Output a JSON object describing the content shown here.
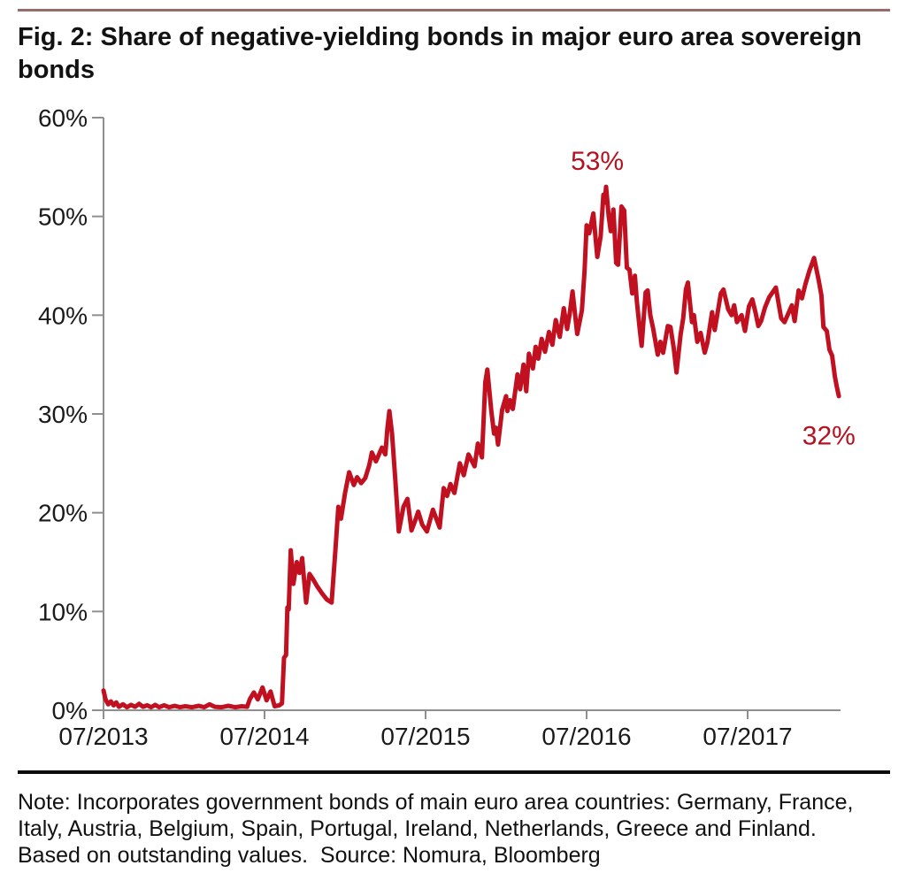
{
  "header": {
    "title": "Fig. 2: Share of negative-yielding bonds in major euro area sovereign bonds"
  },
  "footer": {
    "note_lines": [
      "Note: Incorporates government bonds of main euro area countries: Germany, France,",
      "Italy, Austria, Belgium, Spain, Portugal, Ireland, Netherlands, Greece and Finland.",
      "Based on outstanding values.  Source: Nomura, Bloomberg"
    ]
  },
  "colors": {
    "line_red": "#c11020",
    "annotation_red": "#b5121f",
    "axis_gray": "#8f8f8f",
    "tick_text": "#1a1a1a",
    "top_rule": "#996a6a",
    "bottom_rule": "#0c0c0c"
  },
  "chart_data": {
    "type": "line",
    "title": "Share of negative-yielding bonds in major euro area sovereign bonds",
    "xlabel": "",
    "ylabel": "",
    "unit": "%",
    "grid": false,
    "legend": "none",
    "x_axis": {
      "tick_labels": [
        "07/2013",
        "07/2014",
        "07/2015",
        "07/2016",
        "07/2017"
      ],
      "tick_positions_months": [
        0,
        12,
        24,
        36,
        48
      ],
      "range_months": [
        0,
        55
      ]
    },
    "y_axis": {
      "tick_labels": [
        "0%",
        "10%",
        "20%",
        "30%",
        "40%",
        "50%",
        "60%"
      ],
      "tick_values": [
        0,
        10,
        20,
        30,
        40,
        50,
        60
      ],
      "range": [
        0,
        60
      ]
    },
    "annotations": [
      {
        "label": "53%",
        "x_month": 36.8,
        "label_pct": 54.7
      },
      {
        "label": "32%",
        "x_month": 54.05,
        "label_pct": 26.9
      }
    ],
    "series": [
      {
        "name": "Share of negative-yielding bonds",
        "color": "#c11020",
        "points": [
          [
            0,
            2.0
          ],
          [
            0.15,
            1.1
          ],
          [
            0.35,
            0.6
          ],
          [
            0.55,
            0.9
          ],
          [
            0.75,
            0.5
          ],
          [
            0.95,
            0.8
          ],
          [
            1.15,
            0.35
          ],
          [
            1.45,
            0.6
          ],
          [
            1.75,
            0.3
          ],
          [
            2.05,
            0.55
          ],
          [
            2.35,
            0.35
          ],
          [
            2.65,
            0.65
          ],
          [
            2.95,
            0.35
          ],
          [
            3.25,
            0.5
          ],
          [
            3.55,
            0.3
          ],
          [
            3.85,
            0.55
          ],
          [
            4.15,
            0.3
          ],
          [
            4.5,
            0.5
          ],
          [
            4.9,
            0.3
          ],
          [
            5.3,
            0.45
          ],
          [
            5.7,
            0.3
          ],
          [
            6.1,
            0.4
          ],
          [
            6.6,
            0.3
          ],
          [
            7.1,
            0.45
          ],
          [
            7.5,
            0.3
          ],
          [
            7.9,
            0.6
          ],
          [
            8.3,
            0.35
          ],
          [
            8.8,
            0.3
          ],
          [
            9.3,
            0.45
          ],
          [
            9.8,
            0.3
          ],
          [
            10.3,
            0.4
          ],
          [
            10.7,
            0.35
          ],
          [
            10.9,
            1.1
          ],
          [
            11.2,
            1.8
          ],
          [
            11.5,
            1.1
          ],
          [
            11.85,
            2.3
          ],
          [
            12.15,
            1.0
          ],
          [
            12.45,
            1.9
          ],
          [
            12.75,
            0.4
          ],
          [
            13.1,
            0.5
          ],
          [
            13.3,
            0.7
          ],
          [
            13.45,
            5.3
          ],
          [
            13.6,
            5.6
          ],
          [
            13.7,
            10.4
          ],
          [
            13.8,
            10.2
          ],
          [
            13.95,
            16.2
          ],
          [
            14.15,
            12.8
          ],
          [
            14.4,
            15.0
          ],
          [
            14.6,
            13.9
          ],
          [
            14.8,
            15.4
          ],
          [
            15.1,
            10.9
          ],
          [
            15.35,
            13.8
          ],
          [
            15.6,
            13.3
          ],
          [
            15.9,
            12.6
          ],
          [
            16.3,
            11.8
          ],
          [
            16.65,
            11.2
          ],
          [
            17.0,
            10.9
          ],
          [
            17.3,
            16.6
          ],
          [
            17.5,
            20.6
          ],
          [
            17.7,
            19.4
          ],
          [
            18.0,
            22.0
          ],
          [
            18.3,
            24.1
          ],
          [
            18.65,
            22.8
          ],
          [
            18.9,
            23.6
          ],
          [
            19.2,
            23.0
          ],
          [
            19.5,
            23.5
          ],
          [
            19.8,
            24.8
          ],
          [
            20.0,
            26.1
          ],
          [
            20.3,
            25.2
          ],
          [
            20.75,
            26.6
          ],
          [
            21.0,
            25.9
          ],
          [
            21.15,
            28.5
          ],
          [
            21.3,
            30.3
          ],
          [
            21.5,
            28.0
          ],
          [
            21.75,
            23.2
          ],
          [
            22.0,
            18.1
          ],
          [
            22.35,
            20.6
          ],
          [
            22.65,
            21.4
          ],
          [
            22.95,
            18.2
          ],
          [
            23.25,
            19.3
          ],
          [
            23.45,
            20.1
          ],
          [
            23.75,
            18.8
          ],
          [
            24.1,
            18.1
          ],
          [
            24.55,
            20.3
          ],
          [
            25.05,
            18.5
          ],
          [
            25.35,
            22.5
          ],
          [
            25.6,
            21.7
          ],
          [
            25.85,
            22.9
          ],
          [
            26.15,
            22.0
          ],
          [
            26.55,
            25.0
          ],
          [
            26.85,
            23.8
          ],
          [
            27.2,
            25.9
          ],
          [
            27.65,
            24.7
          ],
          [
            27.9,
            27.0
          ],
          [
            28.2,
            25.6
          ],
          [
            28.45,
            33.2
          ],
          [
            28.6,
            34.5
          ],
          [
            28.9,
            30.3
          ],
          [
            29.1,
            28.0
          ],
          [
            29.25,
            28.6
          ],
          [
            29.4,
            26.9
          ],
          [
            29.7,
            30.4
          ],
          [
            30.0,
            31.8
          ],
          [
            30.1,
            30.3
          ],
          [
            30.3,
            31.4
          ],
          [
            30.5,
            30.5
          ],
          [
            30.85,
            34.0
          ],
          [
            31.05,
            32.5
          ],
          [
            31.3,
            35.0
          ],
          [
            31.5,
            32.3
          ],
          [
            31.7,
            36.1
          ],
          [
            32.0,
            34.6
          ],
          [
            32.2,
            36.8
          ],
          [
            32.4,
            35.6
          ],
          [
            32.65,
            37.6
          ],
          [
            32.9,
            36.3
          ],
          [
            33.2,
            38.3
          ],
          [
            33.45,
            37.0
          ],
          [
            33.7,
            39.5
          ],
          [
            34.0,
            37.8
          ],
          [
            34.3,
            40.7
          ],
          [
            34.55,
            38.6
          ],
          [
            34.75,
            40.2
          ],
          [
            34.95,
            42.4
          ],
          [
            35.3,
            38.1
          ],
          [
            35.65,
            40.5
          ],
          [
            35.85,
            44.5
          ],
          [
            36.0,
            49.1
          ],
          [
            36.2,
            48.3
          ],
          [
            36.5,
            50.3
          ],
          [
            36.8,
            45.9
          ],
          [
            37.05,
            48.0
          ],
          [
            37.25,
            52.2
          ],
          [
            37.35,
            51.4
          ],
          [
            37.45,
            53.0
          ],
          [
            37.65,
            50.0
          ],
          [
            37.8,
            48.5
          ],
          [
            38.0,
            50.7
          ],
          [
            38.2,
            45.3
          ],
          [
            38.35,
            45.1
          ],
          [
            38.6,
            51.0
          ],
          [
            38.8,
            50.6
          ],
          [
            39.0,
            44.8
          ],
          [
            39.2,
            44.6
          ],
          [
            39.4,
            42.2
          ],
          [
            39.6,
            44.0
          ],
          [
            39.75,
            41.3
          ],
          [
            39.95,
            38.7
          ],
          [
            40.1,
            36.9
          ],
          [
            40.4,
            42.3
          ],
          [
            40.55,
            42.5
          ],
          [
            40.75,
            40.0
          ],
          [
            40.95,
            38.7
          ],
          [
            41.3,
            36.0
          ],
          [
            41.5,
            37.3
          ],
          [
            41.7,
            36.2
          ],
          [
            42.05,
            38.9
          ],
          [
            42.25,
            38.8
          ],
          [
            42.5,
            36.6
          ],
          [
            42.7,
            34.2
          ],
          [
            43.0,
            38.0
          ],
          [
            43.2,
            39.7
          ],
          [
            43.4,
            42.6
          ],
          [
            43.55,
            43.3
          ],
          [
            43.85,
            39.3
          ],
          [
            44.0,
            40.0
          ],
          [
            44.25,
            37.3
          ],
          [
            44.5,
            38.2
          ],
          [
            44.8,
            36.2
          ],
          [
            45.0,
            37.2
          ],
          [
            45.35,
            40.3
          ],
          [
            45.55,
            38.5
          ],
          [
            46.0,
            42.2
          ],
          [
            46.2,
            42.6
          ],
          [
            46.55,
            40.6
          ],
          [
            46.8,
            40.0
          ],
          [
            47.0,
            41.0
          ],
          [
            47.2,
            39.3
          ],
          [
            47.55,
            40.0
          ],
          [
            47.8,
            38.4
          ],
          [
            48.1,
            40.9
          ],
          [
            48.35,
            41.6
          ],
          [
            48.6,
            40.2
          ],
          [
            48.8,
            38.9
          ],
          [
            49.0,
            39.4
          ],
          [
            49.3,
            40.8
          ],
          [
            49.6,
            41.8
          ],
          [
            50.1,
            42.8
          ],
          [
            50.5,
            39.7
          ],
          [
            50.75,
            39.3
          ],
          [
            51.3,
            41.0
          ],
          [
            51.5,
            39.4
          ],
          [
            51.8,
            42.5
          ],
          [
            52.05,
            41.7
          ],
          [
            52.3,
            43.1
          ],
          [
            52.6,
            44.5
          ],
          [
            52.95,
            45.8
          ],
          [
            53.3,
            43.5
          ],
          [
            53.5,
            42.0
          ],
          [
            53.65,
            38.8
          ],
          [
            53.9,
            38.4
          ],
          [
            54.1,
            36.5
          ],
          [
            54.3,
            35.9
          ],
          [
            54.5,
            33.8
          ],
          [
            54.65,
            32.7
          ],
          [
            54.8,
            31.8
          ]
        ]
      }
    ]
  }
}
